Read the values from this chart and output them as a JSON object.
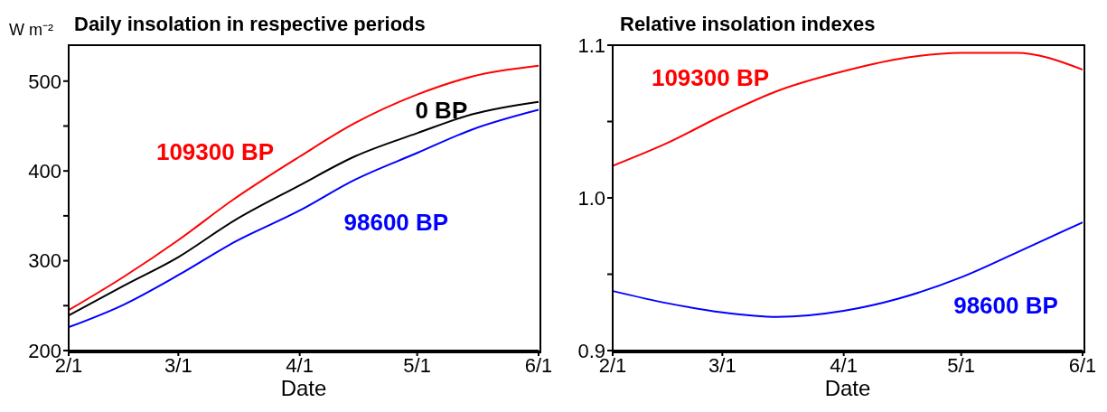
{
  "chart_data": [
    {
      "type": "line",
      "title": "Daily insolation in respective periods",
      "xlabel": "Date",
      "ylabel": "W m⁻²",
      "x": [
        "--02-01",
        "--02-15",
        "--03-01",
        "--03-15",
        "--04-01",
        "--04-15",
        "--05-01",
        "--05-15",
        "--06-01"
      ],
      "series": [
        {
          "name": "109300 BP",
          "color": "#ff0000",
          "values": [
            245,
            282,
            323,
            368,
            416,
            453,
            485,
            505,
            517
          ]
        },
        {
          "name": "0 BP",
          "color": "#000000",
          "values": [
            239,
            272,
            304,
            344,
            384,
            416,
            442,
            463,
            477
          ]
        },
        {
          "name": "98600 BP",
          "color": "#0000ff",
          "values": [
            226,
            251,
            284,
            320,
            356,
            390,
            420,
            446,
            468
          ]
        }
      ],
      "xlim": [
        "--02-01",
        "--06-01"
      ],
      "xticks": [
        {
          "value": "--02-01",
          "label": "2/1"
        },
        {
          "value": "--03-01",
          "label": "3/1"
        },
        {
          "value": "--04-01",
          "label": "4/1"
        },
        {
          "value": "--05-01",
          "label": "5/1"
        },
        {
          "value": "--06-01",
          "label": "6/1"
        }
      ],
      "ylim": [
        200,
        540
      ],
      "yticks": [
        200,
        {
          "value": 250,
          "label": null
        },
        300,
        {
          "value": 350,
          "label": null
        },
        400,
        {
          "value": 450,
          "label": null
        },
        500
      ],
      "grid": false,
      "legend": false,
      "marker": "none",
      "line_style": "solid"
    },
    {
      "type": "line",
      "title": "Relative insolation indexes",
      "xlabel": "Date",
      "x": [
        "--02-01",
        "--02-15",
        "--03-01",
        "--03-15",
        "--04-01",
        "--04-15",
        "--05-01",
        "--05-15",
        "--06-01"
      ],
      "series": [
        {
          "name": "109300 BP",
          "color": "#ff0000",
          "values": [
            1.021,
            1.036,
            1.054,
            1.07,
            1.083,
            1.091,
            1.095,
            1.095,
            1.084
          ]
        },
        {
          "name": "98600 BP",
          "color": "#0000ff",
          "values": [
            0.939,
            0.931,
            0.925,
            0.922,
            0.926,
            0.934,
            0.948,
            0.964,
            0.984
          ]
        }
      ],
      "xlim": [
        "--02-01",
        "--06-01"
      ],
      "xticks": [
        {
          "value": "--02-01",
          "label": "2/1"
        },
        {
          "value": "--03-01",
          "label": "3/1"
        },
        {
          "value": "--04-01",
          "label": "4/1"
        },
        {
          "value": "--05-01",
          "label": "5/1"
        },
        {
          "value": "--06-01",
          "label": "6/1"
        }
      ],
      "ylim": [
        0.9,
        1.1
      ],
      "yticks": [
        {
          "value": 0.9,
          "label": "0.9"
        },
        {
          "value": 0.95,
          "label": null
        },
        {
          "value": 1.0,
          "label": "1.0"
        },
        {
          "value": 1.05,
          "label": null
        },
        {
          "value": 1.1,
          "label": "1.1"
        }
      ],
      "grid": false,
      "legend": false,
      "marker": "none",
      "line_style": "solid"
    }
  ]
}
